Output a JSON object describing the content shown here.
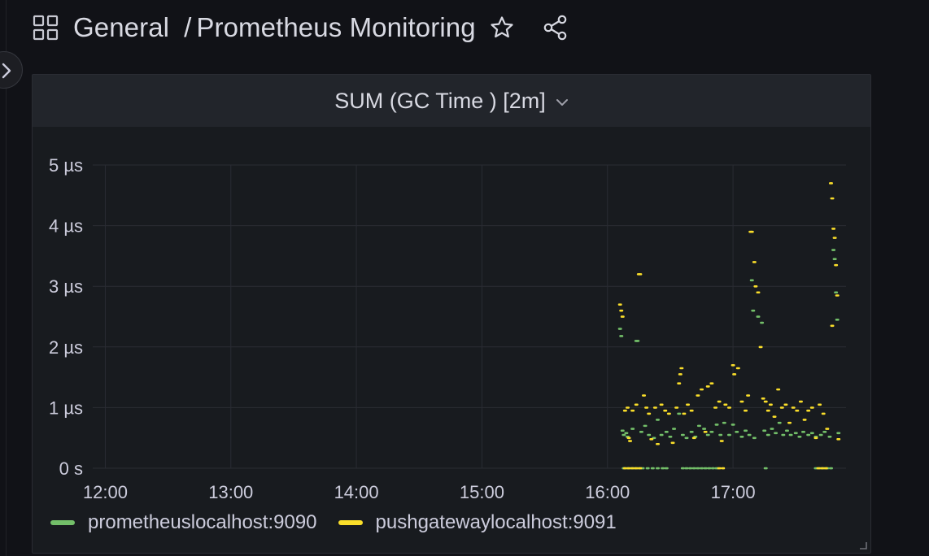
{
  "header": {
    "folder": "General",
    "separator": "/",
    "dashboard_title": "Prometheus Monitoring"
  },
  "icons": {
    "dashboard": "apps-grid-icon",
    "star": "star-icon",
    "share": "share-icon",
    "expand": "chevron-right-icon",
    "panel_menu": "chevron-down-icon"
  },
  "panel": {
    "title": "SUM (GC Time ) [2m]"
  },
  "colors": {
    "series_a": "#73bf69",
    "series_b": "#fade2a",
    "grid": "#2a2c33",
    "axis_text": "#ccccdc"
  },
  "chart_data": {
    "type": "scatter",
    "y_tick_labels": [
      "0 s",
      "1 µs",
      "2 µs",
      "3 µs",
      "4 µs",
      "5 µs"
    ],
    "x_tick_labels": [
      "12:00",
      "13:00",
      "14:00",
      "15:00",
      "16:00",
      "17:00"
    ],
    "x_ticks_hours": [
      12,
      13,
      14,
      15,
      16,
      17
    ],
    "xlim": [
      11.9,
      17.9
    ],
    "ylim": [
      0,
      5
    ],
    "y_unit": "µs",
    "grid": true,
    "legend_position": "bottom",
    "series": [
      {
        "name": "prometheuslocalhost:9090",
        "points": [
          [
            16.1,
            2.3
          ],
          [
            16.11,
            2.18
          ],
          [
            16.12,
            0.62
          ],
          [
            16.13,
            0.55
          ],
          [
            16.15,
            0.58
          ],
          [
            16.16,
            0.52
          ],
          [
            16.2,
            0.65
          ],
          [
            16.23,
            2.1
          ],
          [
            16.24,
            2.1
          ],
          [
            16.27,
            0.6
          ],
          [
            16.3,
            0.7
          ],
          [
            16.33,
            0.55
          ],
          [
            16.37,
            0.5
          ],
          [
            16.4,
            0.8
          ],
          [
            16.43,
            0.55
          ],
          [
            16.47,
            0.6
          ],
          [
            16.5,
            0.52
          ],
          [
            16.53,
            0.65
          ],
          [
            16.57,
            0.9
          ],
          [
            16.6,
            0.55
          ],
          [
            16.63,
            0.5
          ],
          [
            16.67,
            0.6
          ],
          [
            16.7,
            0.52
          ],
          [
            16.73,
            0.7
          ],
          [
            16.77,
            0.65
          ],
          [
            16.8,
            0.55
          ],
          [
            16.83,
            0.6
          ],
          [
            16.87,
            0.72
          ],
          [
            16.9,
            0.55
          ],
          [
            16.93,
            0.75
          ],
          [
            16.97,
            0.55
          ],
          [
            17.0,
            0.72
          ],
          [
            17.03,
            0.6
          ],
          [
            17.07,
            0.52
          ],
          [
            17.1,
            0.62
          ],
          [
            17.13,
            0.55
          ],
          [
            17.15,
            3.1
          ],
          [
            17.16,
            2.6
          ],
          [
            17.17,
            0.5
          ],
          [
            17.2,
            2.5
          ],
          [
            17.23,
            2.4
          ],
          [
            17.25,
            0.62
          ],
          [
            17.28,
            0.55
          ],
          [
            17.31,
            0.65
          ],
          [
            17.34,
            0.58
          ],
          [
            17.37,
            0.75
          ],
          [
            17.4,
            0.55
          ],
          [
            17.43,
            0.62
          ],
          [
            17.46,
            0.55
          ],
          [
            17.5,
            0.58
          ],
          [
            17.53,
            0.52
          ],
          [
            17.56,
            0.6
          ],
          [
            17.6,
            0.55
          ],
          [
            17.63,
            0.58
          ],
          [
            17.66,
            0.52
          ],
          [
            17.7,
            0.55
          ],
          [
            17.73,
            0.6
          ],
          [
            17.77,
            0.52
          ],
          [
            17.8,
            3.6
          ],
          [
            17.81,
            3.45
          ],
          [
            17.82,
            2.9
          ],
          [
            17.83,
            2.45
          ],
          [
            17.84,
            0.58
          ],
          [
            16.13,
            0.0
          ],
          [
            16.16,
            0.0
          ],
          [
            16.19,
            0.0
          ],
          [
            16.22,
            0.0
          ],
          [
            16.25,
            0.0
          ],
          [
            16.28,
            0.0
          ],
          [
            16.32,
            0.0
          ],
          [
            16.36,
            0.0
          ],
          [
            16.4,
            0.0
          ],
          [
            16.44,
            0.0
          ],
          [
            16.47,
            0.0
          ],
          [
            16.6,
            0.0
          ],
          [
            16.63,
            0.0
          ],
          [
            16.66,
            0.0
          ],
          [
            16.69,
            0.0
          ],
          [
            16.72,
            0.0
          ],
          [
            16.75,
            0.0
          ],
          [
            16.78,
            0.0
          ],
          [
            16.81,
            0.0
          ],
          [
            16.84,
            0.0
          ],
          [
            16.87,
            0.0
          ],
          [
            17.26,
            0.0
          ],
          [
            17.66,
            0.0
          ],
          [
            17.69,
            0.0
          ],
          [
            17.72,
            0.0
          ],
          [
            17.75,
            0.0
          ],
          [
            17.78,
            0.0
          ]
        ]
      },
      {
        "name": "pushgatewaylocalhost:9091",
        "points": [
          [
            16.1,
            2.7
          ],
          [
            16.11,
            2.6
          ],
          [
            16.12,
            2.5
          ],
          [
            16.14,
            0.95
          ],
          [
            16.16,
            1.0
          ],
          [
            16.17,
            0.5
          ],
          [
            16.18,
            0.45
          ],
          [
            16.2,
            0.95
          ],
          [
            16.23,
            1.05
          ],
          [
            16.25,
            3.2
          ],
          [
            16.26,
            3.2
          ],
          [
            16.29,
            1.2
          ],
          [
            16.31,
            1.0
          ],
          [
            16.33,
            0.9
          ],
          [
            16.35,
            0.48
          ],
          [
            16.38,
            1.0
          ],
          [
            16.4,
            0.4
          ],
          [
            16.43,
            1.05
          ],
          [
            16.46,
            0.95
          ],
          [
            16.49,
            0.9
          ],
          [
            16.52,
            0.42
          ],
          [
            16.55,
            1.0
          ],
          [
            16.57,
            1.4
          ],
          [
            16.58,
            1.55
          ],
          [
            16.59,
            1.65
          ],
          [
            16.61,
            0.9
          ],
          [
            16.64,
            1.05
          ],
          [
            16.67,
            0.95
          ],
          [
            16.69,
            0.5
          ],
          [
            16.72,
            1.2
          ],
          [
            16.75,
            1.3
          ],
          [
            16.78,
            0.6
          ],
          [
            16.8,
            1.35
          ],
          [
            16.83,
            1.4
          ],
          [
            16.86,
            1.0
          ],
          [
            16.89,
            1.1
          ],
          [
            16.91,
            0.45
          ],
          [
            16.94,
            1.05
          ],
          [
            16.97,
            1.0
          ],
          [
            17.0,
            1.7
          ],
          [
            17.01,
            1.55
          ],
          [
            17.04,
            1.65
          ],
          [
            17.07,
            1.1
          ],
          [
            17.1,
            0.95
          ],
          [
            17.12,
            1.2
          ],
          [
            17.14,
            3.9
          ],
          [
            17.15,
            3.9
          ],
          [
            17.17,
            3.4
          ],
          [
            17.18,
            3.0
          ],
          [
            17.2,
            2.9
          ],
          [
            17.22,
            2.0
          ],
          [
            17.24,
            1.15
          ],
          [
            17.26,
            1.1
          ],
          [
            17.28,
            0.95
          ],
          [
            17.3,
            1.05
          ],
          [
            17.33,
            0.85
          ],
          [
            17.36,
            1.3
          ],
          [
            17.39,
            1.0
          ],
          [
            17.42,
            1.05
          ],
          [
            17.45,
            0.75
          ],
          [
            17.48,
            1.0
          ],
          [
            17.51,
            0.95
          ],
          [
            17.54,
            1.1
          ],
          [
            17.57,
            0.8
          ],
          [
            17.6,
            0.95
          ],
          [
            17.63,
            1.0
          ],
          [
            17.66,
            0.5
          ],
          [
            17.69,
            1.05
          ],
          [
            17.72,
            0.9
          ],
          [
            17.75,
            0.65
          ],
          [
            17.78,
            4.7
          ],
          [
            17.79,
            4.45
          ],
          [
            17.8,
            3.95
          ],
          [
            17.81,
            3.8
          ],
          [
            17.82,
            3.35
          ],
          [
            17.83,
            2.85
          ],
          [
            17.79,
            2.35
          ],
          [
            17.84,
            0.48
          ],
          [
            16.14,
            0.0
          ],
          [
            16.17,
            0.0
          ],
          [
            16.2,
            0.0
          ],
          [
            16.23,
            0.0
          ],
          [
            16.26,
            0.0
          ],
          [
            16.89,
            0.0
          ],
          [
            16.92,
            0.0
          ],
          [
            17.68,
            0.0
          ],
          [
            17.71,
            0.0
          ],
          [
            17.74,
            0.0
          ]
        ]
      }
    ]
  }
}
